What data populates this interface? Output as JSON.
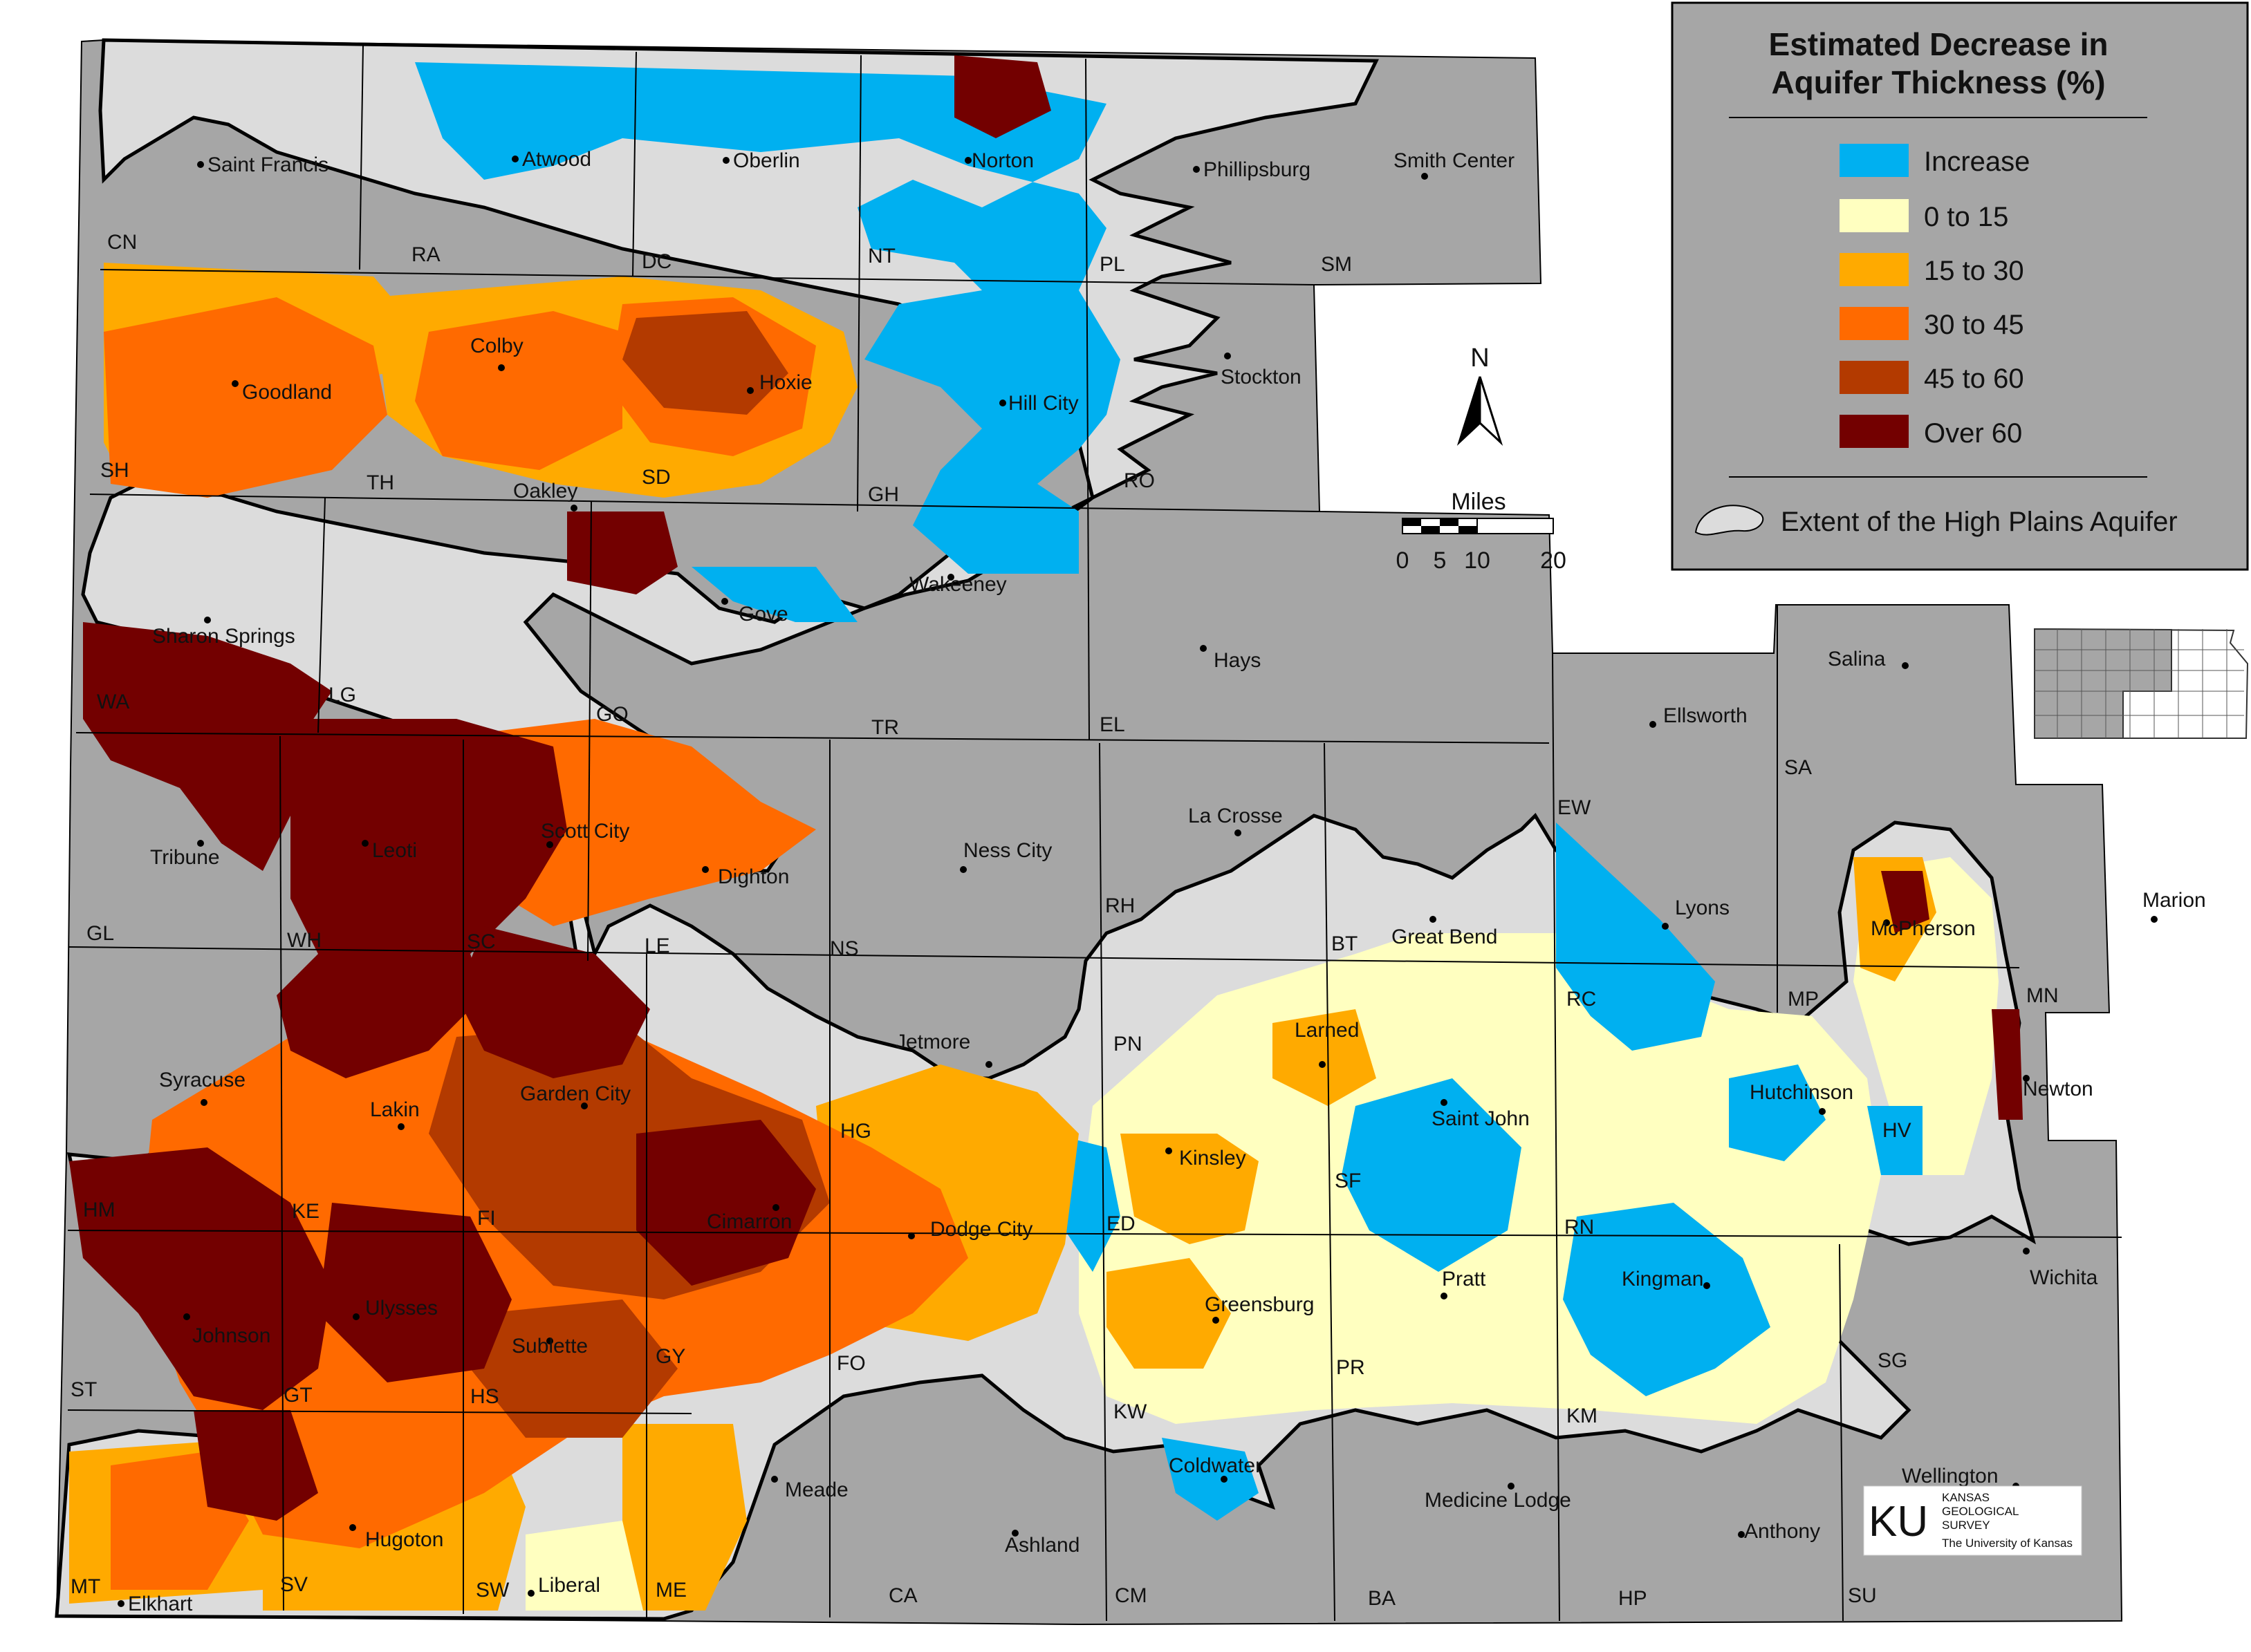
{
  "legend": {
    "title_line1": "Estimated Decrease in",
    "title_line2": "Aquifer Thickness (%)",
    "items": [
      {
        "label": "Increase",
        "color": "#00b0f0"
      },
      {
        "label": "0 to 15",
        "color": "#ffffc0"
      },
      {
        "label": "15 to 30",
        "color": "#ffaa00"
      },
      {
        "label": "30 to 45",
        "color": "#ff6a00"
      },
      {
        "label": "45 to 60",
        "color": "#b33a00"
      },
      {
        "label": "Over 60",
        "color": "#730000"
      }
    ],
    "extent_label": "Extent of the High Plains Aquifer"
  },
  "scale_bar": {
    "title": "Miles",
    "ticks": [
      "0",
      "5",
      "10",
      "20"
    ]
  },
  "north_arrow": {
    "label": "N"
  },
  "logo": {
    "mark": "KU",
    "line1": "KANSAS",
    "line2": "GEOLOGICAL",
    "line3": "SURVEY",
    "line4": "The University of Kansas"
  },
  "towns": [
    {
      "name": "Saint Francis"
    },
    {
      "name": "Atwood"
    },
    {
      "name": "Oberlin"
    },
    {
      "name": "Norton"
    },
    {
      "name": "Phillipsburg"
    },
    {
      "name": "Smith Center"
    },
    {
      "name": "Goodland"
    },
    {
      "name": "Colby"
    },
    {
      "name": "Hoxie"
    },
    {
      "name": "Hill City"
    },
    {
      "name": "Stockton"
    },
    {
      "name": "Oakley"
    },
    {
      "name": "Gove"
    },
    {
      "name": "Wakeeney"
    },
    {
      "name": "Hays"
    },
    {
      "name": "Sharon Springs"
    },
    {
      "name": "Tribune"
    },
    {
      "name": "Leoti"
    },
    {
      "name": "Scott City"
    },
    {
      "name": "Dighton"
    },
    {
      "name": "Ness City"
    },
    {
      "name": "La Crosse"
    },
    {
      "name": "Great Bend"
    },
    {
      "name": "Lyons"
    },
    {
      "name": "Ellsworth"
    },
    {
      "name": "Salina"
    },
    {
      "name": "McPherson"
    },
    {
      "name": "Marion"
    },
    {
      "name": "Syracuse"
    },
    {
      "name": "Lakin"
    },
    {
      "name": "Garden City"
    },
    {
      "name": "Jetmore"
    },
    {
      "name": "Larned"
    },
    {
      "name": "Saint John"
    },
    {
      "name": "Hutchinson"
    },
    {
      "name": "Newton"
    },
    {
      "name": "Kinsley"
    },
    {
      "name": "Cimarron"
    },
    {
      "name": "Dodge City"
    },
    {
      "name": "Ulysses"
    },
    {
      "name": "Johnson"
    },
    {
      "name": "Sublette"
    },
    {
      "name": "Greensburg"
    },
    {
      "name": "Pratt"
    },
    {
      "name": "Kingman"
    },
    {
      "name": "Wichita"
    },
    {
      "name": "Hugoton"
    },
    {
      "name": "Meade"
    },
    {
      "name": "Ashland"
    },
    {
      "name": "Coldwater"
    },
    {
      "name": "Medicine Lodge"
    },
    {
      "name": "Anthony"
    },
    {
      "name": "Wellington"
    },
    {
      "name": "Liberal"
    },
    {
      "name": "Elkhart"
    }
  ],
  "counties": [
    "CN",
    "RA",
    "DC",
    "NT",
    "PL",
    "SM",
    "SH",
    "TH",
    "SD",
    "GH",
    "RO",
    "WA",
    "LG",
    "GO",
    "TR",
    "EL",
    "GL",
    "WH",
    "SC",
    "LE",
    "NS",
    "RH",
    "BT",
    "EW",
    "SA",
    "RC",
    "MP",
    "MN",
    "PN",
    "HM",
    "KE",
    "FI",
    "HG",
    "ED",
    "SF",
    "RN",
    "HV",
    "ST",
    "GT",
    "HS",
    "GY",
    "FO",
    "KW",
    "PR",
    "KM",
    "SG",
    "MT",
    "SV",
    "SW",
    "ME",
    "CA",
    "CM",
    "BA",
    "HP",
    "SU"
  ]
}
